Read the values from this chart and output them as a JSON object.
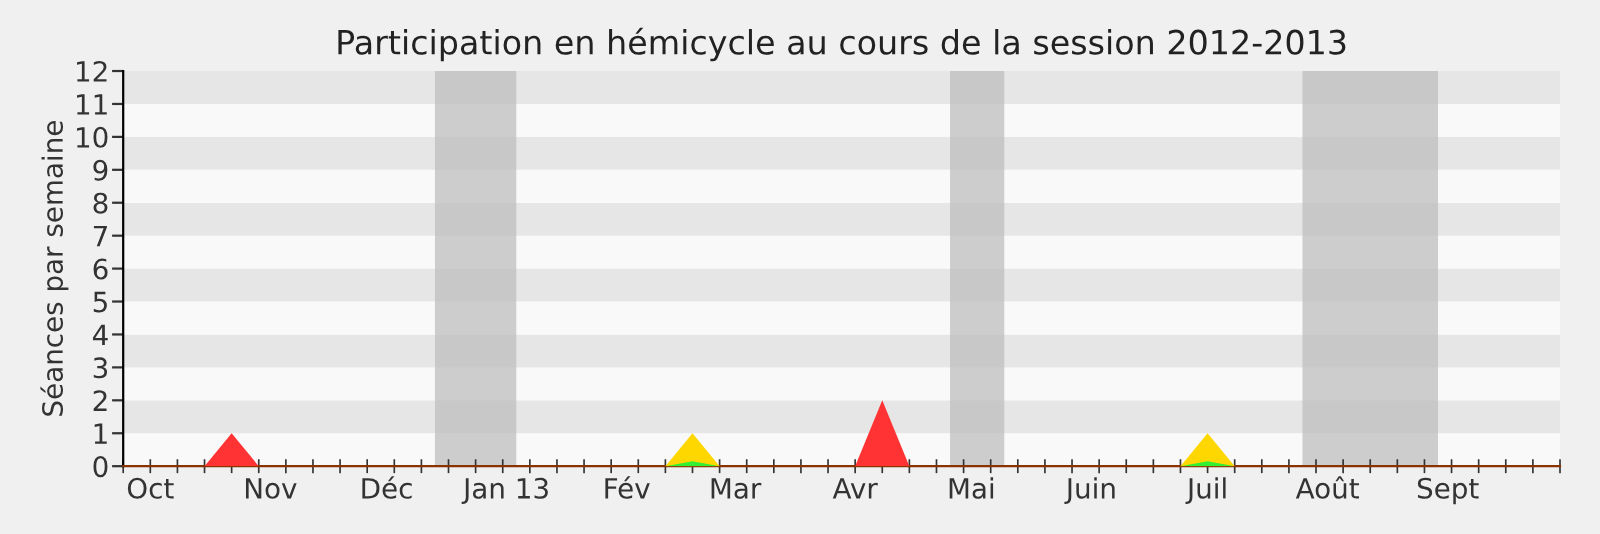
{
  "chart_data": {
    "type": "area",
    "title": "Participation en hémicycle au cours de la session 2012-2013",
    "ylabel": "Séances par semaine",
    "series": [
      {
        "color": "#ffd700",
        "x": [
          "2013-02-11",
          "2013-02-18",
          "2013-02-25",
          "2013-06-24",
          "2013-07-01",
          "2013-07-08"
        ],
        "values": [
          0,
          1,
          0,
          0,
          1,
          0
        ]
      },
      {
        "color": "#33ee33",
        "x": [
          "2013-02-11",
          "2013-02-18",
          "2013-02-25",
          "2013-06-24",
          "2013-07-01",
          "2013-07-08"
        ],
        "values": [
          0,
          0.15,
          0,
          0,
          0.15,
          0
        ]
      },
      {
        "color": "#ff3333",
        "x": [
          "2012-10-15",
          "2012-10-22",
          "2012-10-29",
          "2013-04-01",
          "2013-04-08",
          "2013-04-15"
        ],
        "values": [
          0,
          1,
          0,
          0,
          2,
          0
        ]
      }
    ],
    "xlim": [
      "2012-09-24",
      "2013-09-30"
    ],
    "xticks": [
      {
        "value": "2012-09-24",
        "label": null
      },
      {
        "value": "2012-10-01",
        "label": null
      },
      {
        "value": "2012-10-01",
        "label": "Oct"
      },
      {
        "value": "2012-10-08",
        "label": null
      },
      {
        "value": "2012-10-15",
        "label": null
      },
      {
        "value": "2012-10-22",
        "label": null
      },
      {
        "value": "2012-10-29",
        "label": null
      },
      {
        "value": "2012-11-05",
        "label": null
      },
      {
        "value": "2012-11-01",
        "label": "Nov"
      },
      {
        "value": "2012-11-12",
        "label": null
      },
      {
        "value": "2012-11-19",
        "label": null
      },
      {
        "value": "2012-11-26",
        "label": null
      },
      {
        "value": "2012-12-03",
        "label": null
      },
      {
        "value": "2012-12-10",
        "label": null
      },
      {
        "value": "2012-12-01",
        "label": "Déc"
      },
      {
        "value": "2012-12-17",
        "label": null
      },
      {
        "value": "2012-12-24",
        "label": null
      },
      {
        "value": "2012-12-31",
        "label": null
      },
      {
        "value": "2013-01-07",
        "label": null
      },
      {
        "value": "2013-01-01",
        "label": "Jan 13"
      },
      {
        "value": "2013-01-14",
        "label": null
      },
      {
        "value": "2013-01-21",
        "label": null
      },
      {
        "value": "2013-01-28",
        "label": null
      },
      {
        "value": "2013-02-01",
        "label": "Fév"
      },
      {
        "value": "2013-02-04",
        "label": null
      },
      {
        "value": "2013-02-11",
        "label": null
      },
      {
        "value": "2013-02-18",
        "label": null
      },
      {
        "value": "2013-02-25",
        "label": null
      },
      {
        "value": "2013-03-01",
        "label": "Mar"
      },
      {
        "value": "2013-03-04",
        "label": null
      },
      {
        "value": "2013-03-11",
        "label": null
      },
      {
        "value": "2013-03-18",
        "label": null
      },
      {
        "value": "2013-03-25",
        "label": null
      },
      {
        "value": "2013-04-01",
        "label": null
      },
      {
        "value": "2013-04-01",
        "label": "Avr"
      },
      {
        "value": "2013-04-08",
        "label": null
      },
      {
        "value": "2013-04-15",
        "label": null
      },
      {
        "value": "2013-04-22",
        "label": null
      },
      {
        "value": "2013-04-29",
        "label": null
      },
      {
        "value": "2013-05-01",
        "label": "Mai"
      },
      {
        "value": "2013-05-06",
        "label": null
      },
      {
        "value": "2013-05-13",
        "label": null
      },
      {
        "value": "2013-05-20",
        "label": null
      },
      {
        "value": "2013-05-27",
        "label": null
      },
      {
        "value": "2013-06-03",
        "label": null
      },
      {
        "value": "2013-06-01",
        "label": "Juin"
      },
      {
        "value": "2013-06-10",
        "label": null
      },
      {
        "value": "2013-06-17",
        "label": null
      },
      {
        "value": "2013-06-24",
        "label": null
      },
      {
        "value": "2013-07-01",
        "label": null
      },
      {
        "value": "2013-07-01",
        "label": "Juil"
      },
      {
        "value": "2013-07-08",
        "label": null
      },
      {
        "value": "2013-07-15",
        "label": null
      },
      {
        "value": "2013-07-22",
        "label": null
      },
      {
        "value": "2013-07-29",
        "label": null
      },
      {
        "value": "2013-08-05",
        "label": null
      },
      {
        "value": "2013-08-01",
        "label": "Août"
      },
      {
        "value": "2013-08-12",
        "label": null
      },
      {
        "value": "2013-08-19",
        "label": null
      },
      {
        "value": "2013-08-26",
        "label": null
      },
      {
        "value": "2013-09-02",
        "label": null
      },
      {
        "value": "2013-09-09",
        "label": null
      },
      {
        "value": "2013-09-01",
        "label": "Sept"
      },
      {
        "value": "2013-09-16",
        "label": null
      },
      {
        "value": "2013-09-23",
        "label": null
      },
      {
        "value": "2013-09-30",
        "label": null
      }
    ],
    "ylim": [
      0,
      12
    ],
    "yticks": [
      0,
      1,
      2,
      3,
      4,
      5,
      6,
      7,
      8,
      9,
      10,
      11,
      12
    ],
    "bands": [
      {
        "axis": "y",
        "from": 0,
        "to": 1,
        "color": "#f9f9f9"
      },
      {
        "axis": "y",
        "from": 1,
        "to": 2,
        "color": "#e6e6e6"
      },
      {
        "axis": "y",
        "from": 2,
        "to": 3,
        "color": "#f9f9f9"
      },
      {
        "axis": "y",
        "from": 3,
        "to": 4,
        "color": "#e6e6e6"
      },
      {
        "axis": "y",
        "from": 4,
        "to": 5,
        "color": "#f9f9f9"
      },
      {
        "axis": "y",
        "from": 5,
        "to": 6,
        "color": "#e6e6e6"
      },
      {
        "axis": "y",
        "from": 6,
        "to": 7,
        "color": "#f9f9f9"
      },
      {
        "axis": "y",
        "from": 7,
        "to": 8,
        "color": "#e6e6e6"
      },
      {
        "axis": "y",
        "from": 8,
        "to": 9,
        "color": "#f9f9f9"
      },
      {
        "axis": "y",
        "from": 9,
        "to": 10,
        "color": "#e6e6e6"
      },
      {
        "axis": "y",
        "from": 10,
        "to": 11,
        "color": "#f9f9f9"
      },
      {
        "axis": "y",
        "from": 11,
        "to": 12,
        "color": "#e6e6e6"
      },
      {
        "axis": "x",
        "from": "2012-12-13T12:00",
        "to": "2013-01-03T12:00",
        "color": "#bebebe"
      },
      {
        "axis": "x",
        "from": "2013-04-25T12:00",
        "to": "2013-05-09T12:00",
        "color": "#bebebe"
      },
      {
        "axis": "x",
        "from": "2013-07-25T12:00",
        "to": "2013-08-29T12:00",
        "color": "#bebebe"
      }
    ],
    "grid": false,
    "legend": false
  }
}
